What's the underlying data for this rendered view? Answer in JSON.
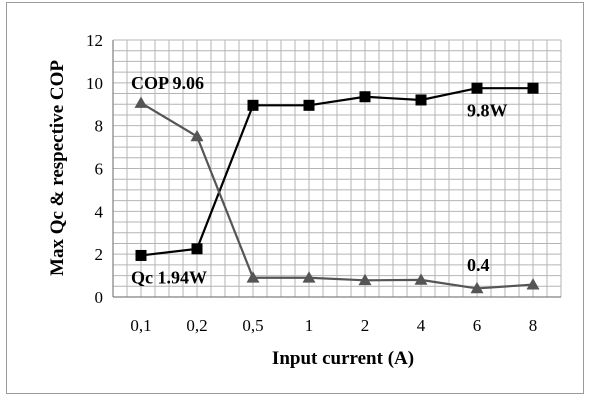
{
  "chart_data": {
    "type": "line",
    "xlabel": "Input current (A)",
    "ylabel": "Max Qc & respective COP",
    "categories": [
      "0,1",
      "0,2",
      "0,5",
      "1",
      "2",
      "4",
      "6",
      "8"
    ],
    "ylim": [
      0,
      12
    ],
    "yticks": [
      0,
      2,
      4,
      6,
      8,
      10,
      12
    ],
    "grid": "on",
    "series": [
      {
        "marker": "square",
        "color": "#000000",
        "values": [
          1.94,
          2.25,
          8.95,
          8.95,
          9.35,
          9.2,
          9.75,
          9.75
        ]
      },
      {
        "marker": "triangle",
        "color": "#555555",
        "values": [
          9.06,
          7.5,
          0.9,
          0.9,
          0.78,
          0.8,
          0.4,
          0.58
        ]
      }
    ],
    "annotations": [
      {
        "text": "COP 9.06",
        "x": "0,1",
        "y": 10.0
      },
      {
        "text": "Qc 1.94W",
        "x": "0,1",
        "y": 0.9
      },
      {
        "text": "9.8W",
        "x": "6",
        "y": 8.7
      },
      {
        "text": "0.4",
        "x": "6",
        "y": 1.5
      }
    ]
  }
}
